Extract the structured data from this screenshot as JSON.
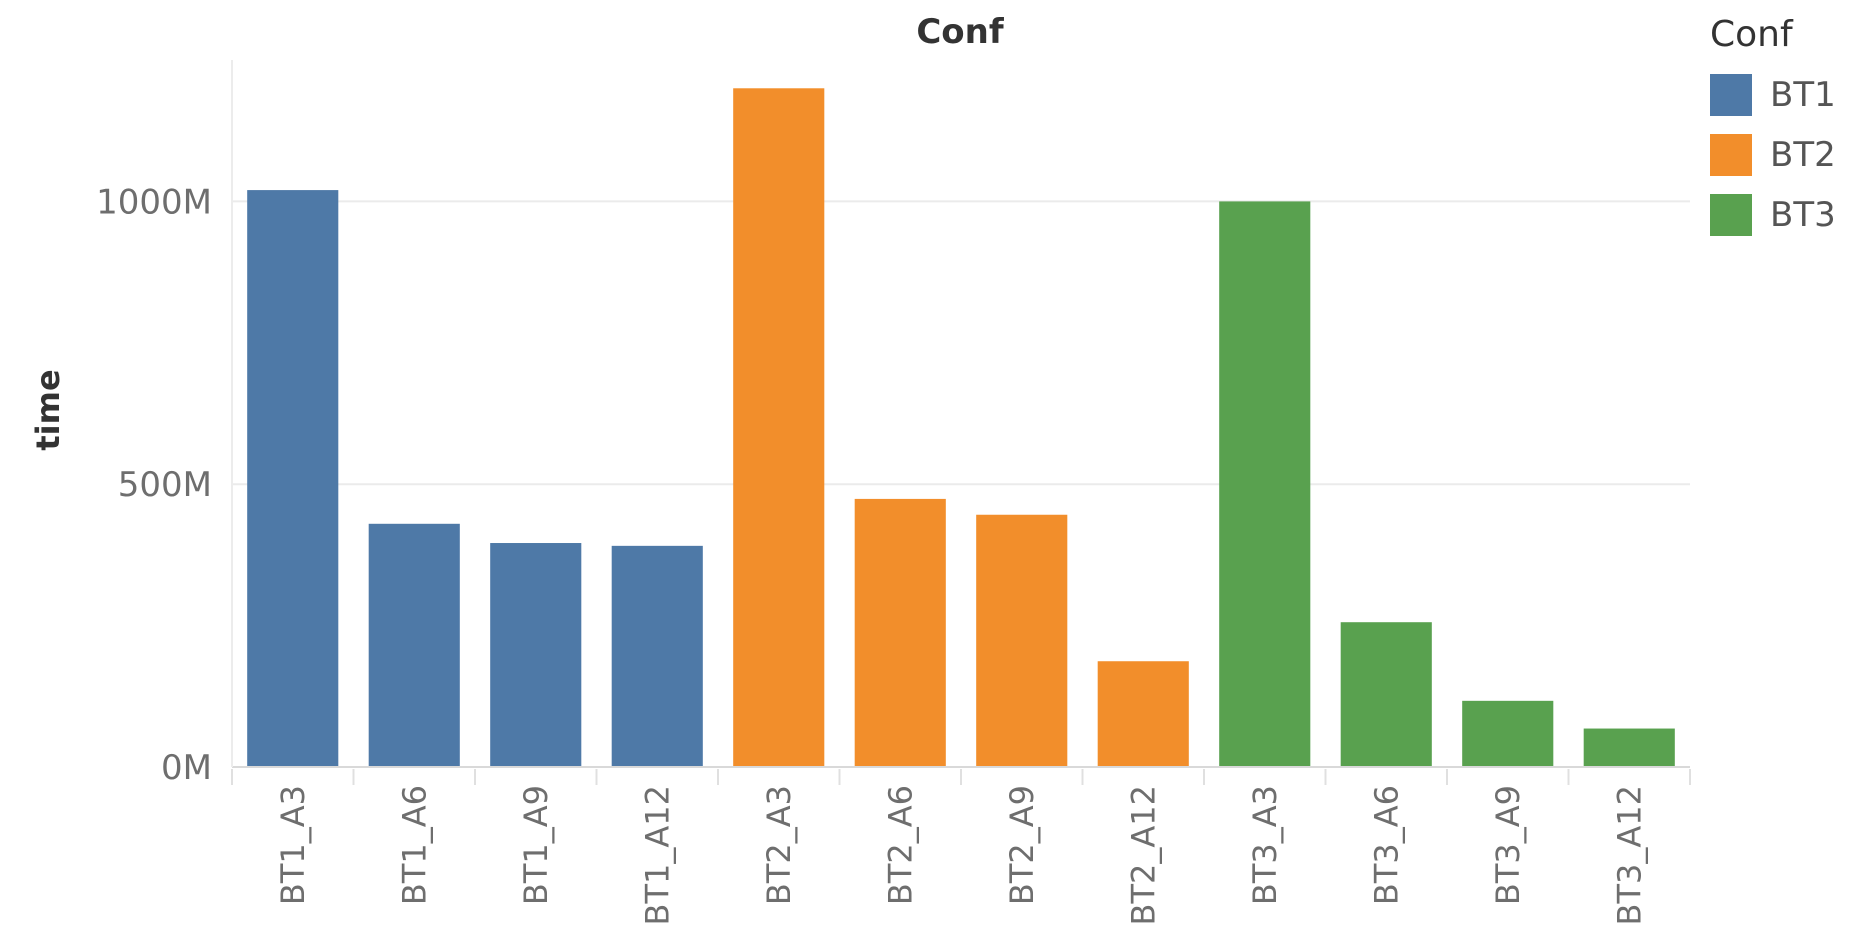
{
  "chart_data": {
    "type": "bar",
    "title": "Conf",
    "xlabel": "",
    "ylabel": "time",
    "ylim": [
      0,
      1250
    ],
    "yticks": [
      0,
      500,
      1000
    ],
    "ytick_labels": [
      "0M",
      "500M",
      "1000M"
    ],
    "categories": [
      "BT1_A3",
      "BT1_A6",
      "BT1_A9",
      "BT1_A12",
      "BT2_A3",
      "BT2_A6",
      "BT2_A9",
      "BT2_A12",
      "BT3_A3",
      "BT3_A6",
      "BT3_A9",
      "BT3_A12"
    ],
    "values": [
      1020,
      430,
      396,
      391,
      1200,
      474,
      446,
      187,
      1000,
      256,
      117,
      68
    ],
    "value_unit": "M",
    "groups": [
      "BT1",
      "BT1",
      "BT1",
      "BT1",
      "BT2",
      "BT2",
      "BT2",
      "BT2",
      "BT3",
      "BT3",
      "BT3",
      "BT3"
    ],
    "grid": true,
    "legend": {
      "title": "Conf",
      "placement": "top-right",
      "items": [
        {
          "label": "BT1",
          "color": "#4e79a7"
        },
        {
          "label": "BT2",
          "color": "#f28e2b"
        },
        {
          "label": "BT3",
          "color": "#59a14f"
        }
      ]
    }
  }
}
